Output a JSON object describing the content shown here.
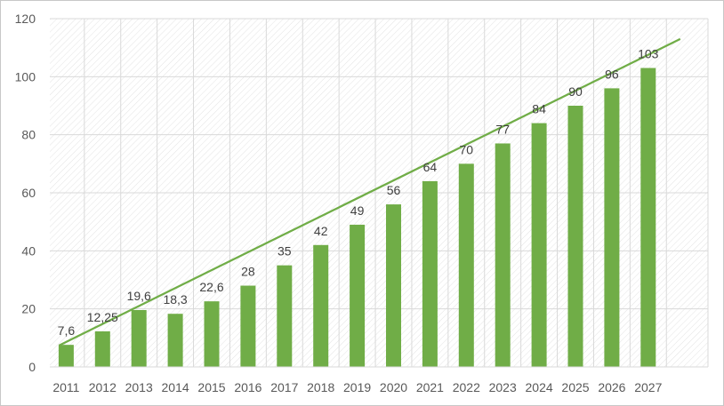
{
  "chart_data": {
    "type": "bar",
    "title": "",
    "xlabel": "",
    "ylabel": "",
    "categories": [
      "2011",
      "2012",
      "2013",
      "2014",
      "2015",
      "2016",
      "2017",
      "2018",
      "2019",
      "2020",
      "2021",
      "2022",
      "2023",
      "2024",
      "2025",
      "2026",
      "2027"
    ],
    "values": [
      7.6,
      12.25,
      19.6,
      18.3,
      22.6,
      28,
      35,
      42,
      49,
      56,
      64,
      70,
      77,
      84,
      90,
      96,
      103
    ],
    "data_labels": [
      "7,6",
      "12,25",
      "19,6",
      "18,3",
      "22,6",
      "28",
      "35",
      "42",
      "49",
      "56",
      "64",
      "70",
      "77",
      "84",
      "90",
      "96",
      "103"
    ],
    "ylim": [
      0,
      120
    ],
    "yticks": [
      0,
      20,
      40,
      60,
      80,
      100,
      120
    ],
    "trendline": {
      "type": "linear",
      "start": {
        "x": "2011",
        "y": 7.4
      },
      "end": {
        "x": "2027",
        "y": 113
      }
    },
    "grid": true,
    "legend": "none",
    "colors": {
      "bar": "#70ad47",
      "trendline": "#70ad47",
      "gridline": "#d9d9d9",
      "plot_hatch": "#e3e3e3"
    }
  }
}
